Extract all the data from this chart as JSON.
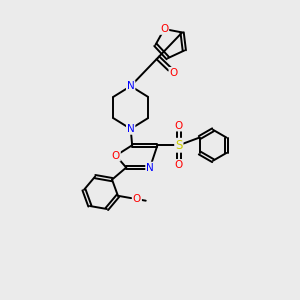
{
  "background_color": "#ebebeb",
  "bond_color": "#000000",
  "atom_colors": {
    "O": "#ff0000",
    "N": "#0000ff",
    "S": "#cccc00",
    "C": "#000000"
  },
  "figsize": [
    3.0,
    3.0
  ],
  "dpi": 100
}
